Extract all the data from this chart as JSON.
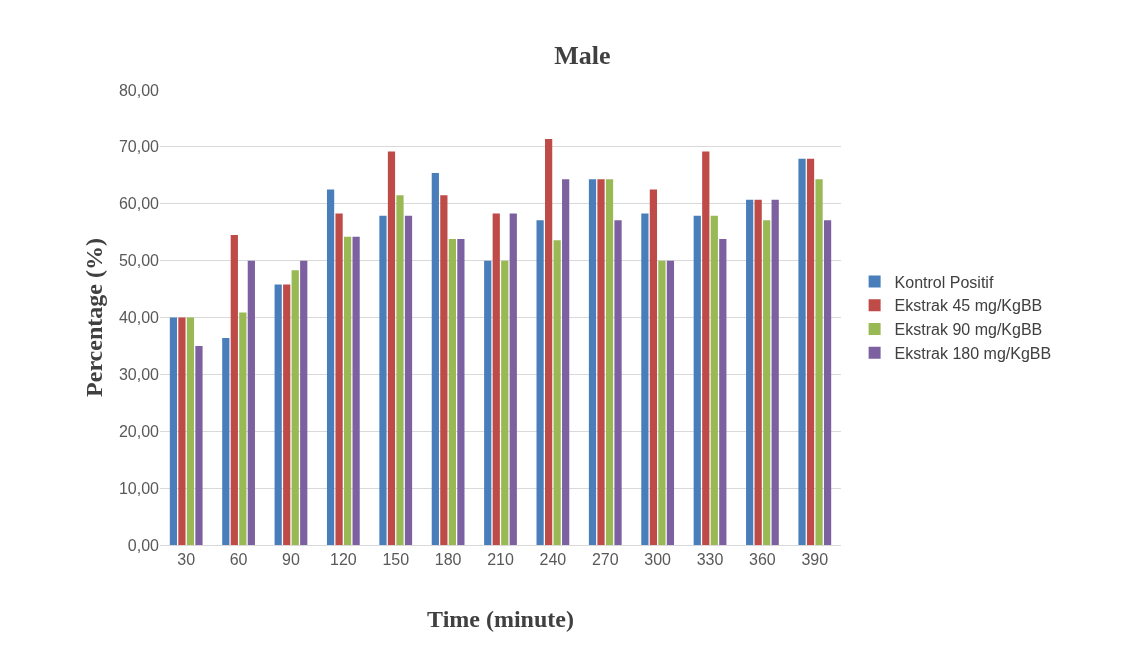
{
  "chart_data": {
    "type": "bar",
    "title": "Male",
    "xlabel": "Time (minute)",
    "ylabel": "Percentage (%)",
    "categories": [
      "30",
      "60",
      "90",
      "120",
      "150",
      "180",
      "210",
      "240",
      "270",
      "300",
      "330",
      "360",
      "390"
    ],
    "series": [
      {
        "name": "Kontrol Positif",
        "color": "#4a7ebb",
        "values": [
          40,
          36.4,
          45.8,
          62.5,
          57.9,
          65.4,
          50,
          57.1,
          64.3,
          58.3,
          57.9,
          60.7,
          67.9
        ]
      },
      {
        "name": "Ekstrak 45 mg/KgBB",
        "color": "#be4b48",
        "values": [
          40,
          54.5,
          45.8,
          58.3,
          69.2,
          61.5,
          58.3,
          71.4,
          64.3,
          62.5,
          69.2,
          60.7,
          67.9
        ]
      },
      {
        "name": "Ekstrak 90 mg/KgBB",
        "color": "#98b954",
        "values": [
          40,
          40.9,
          48.3,
          54.2,
          61.5,
          53.8,
          50,
          53.6,
          64.3,
          50,
          57.9,
          57.1,
          64.3
        ]
      },
      {
        "name": "Ekstrak 180 mg/KgBB",
        "color": "#7d60a0",
        "values": [
          35,
          50,
          50,
          54.2,
          57.9,
          53.8,
          58.3,
          64.3,
          57.1,
          50,
          53.8,
          60.7,
          57.1
        ]
      }
    ],
    "ylim": [
      0,
      80
    ],
    "yticks": [
      {
        "value": 0,
        "label": "0,00"
      },
      {
        "value": 10,
        "label": "10,00"
      },
      {
        "value": 20,
        "label": "20,00"
      },
      {
        "value": 30,
        "label": "30,00"
      },
      {
        "value": 40,
        "label": "40,00"
      },
      {
        "value": 50,
        "label": "50,00"
      },
      {
        "value": 60,
        "label": "60,00"
      },
      {
        "value": 70,
        "label": "70,00"
      },
      {
        "value": 80,
        "label": "80,00"
      }
    ],
    "grid": "y",
    "legend": "right"
  }
}
